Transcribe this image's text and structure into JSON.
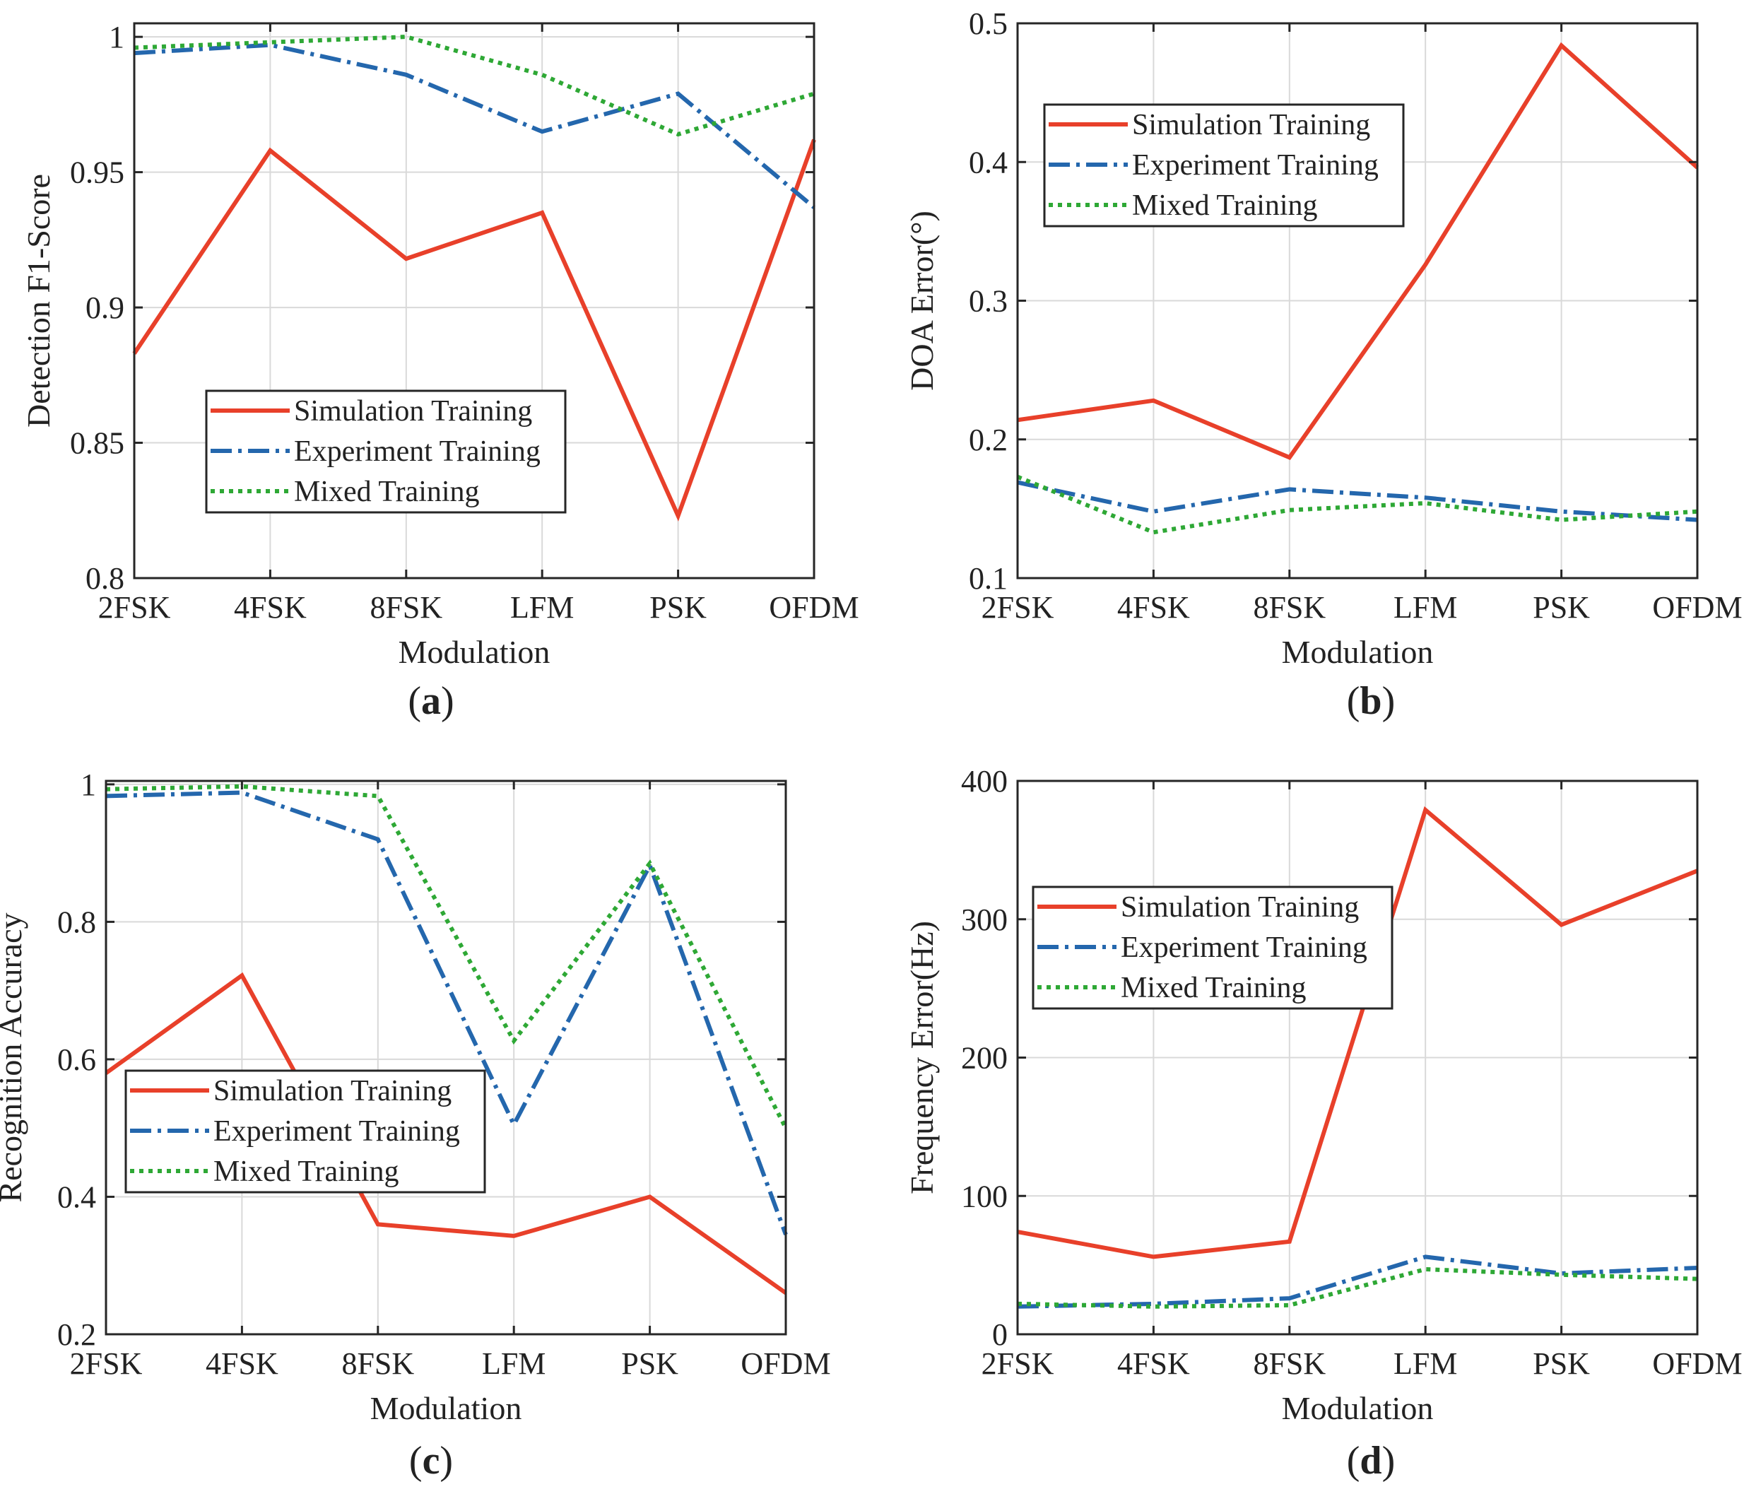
{
  "colors": {
    "simulation": "#e8402a",
    "experiment": "#2467ad",
    "mixed": "#2ea835",
    "grid": "#d9d9d9",
    "axis": "#262626"
  },
  "chart_data": [
    {
      "id": "a",
      "type": "line",
      "panel_label": "a",
      "xlabel": "Modulation",
      "ylabel": "Detection F1-Score",
      "categories": [
        "2FSK",
        "4FSK",
        "8FSK",
        "LFM",
        "PSK",
        "OFDM"
      ],
      "ylim": [
        0.8,
        1.005
      ],
      "yticks": [
        0.8,
        0.85,
        0.9,
        0.95,
        1
      ],
      "ytick_labels": [
        "0.8",
        "0.85",
        "0.9",
        "0.95",
        "1"
      ],
      "grid": true,
      "legend_position": "lower-center",
      "series": [
        {
          "name": "Simulation Training",
          "style": "solid",
          "values": [
            0.883,
            0.958,
            0.918,
            0.935,
            0.823,
            0.962
          ]
        },
        {
          "name": "Experiment Training",
          "style": "dashdot",
          "values": [
            0.994,
            0.997,
            0.986,
            0.965,
            0.979,
            0.937
          ]
        },
        {
          "name": "Mixed Training",
          "style": "dotted",
          "values": [
            0.996,
            0.998,
            1.0,
            0.986,
            0.964,
            0.979
          ]
        }
      ]
    },
    {
      "id": "b",
      "type": "line",
      "panel_label": "b",
      "xlabel": "Modulation",
      "ylabel": "DOA Error(°)",
      "categories": [
        "2FSK",
        "4FSK",
        "8FSK",
        "LFM",
        "PSK",
        "OFDM"
      ],
      "ylim": [
        0.1,
        0.5
      ],
      "yticks": [
        0.1,
        0.2,
        0.3,
        0.4,
        0.5
      ],
      "ytick_labels": [
        "0.1",
        "0.2",
        "0.3",
        "0.4",
        "0.5"
      ],
      "grid": true,
      "legend_position": "top-left",
      "series": [
        {
          "name": "Simulation Training",
          "style": "solid",
          "values": [
            0.214,
            0.228,
            0.187,
            0.326,
            0.484,
            0.396
          ]
        },
        {
          "name": "Experiment Training",
          "style": "dashdot",
          "values": [
            0.169,
            0.148,
            0.164,
            0.158,
            0.148,
            0.142
          ]
        },
        {
          "name": "Mixed Training",
          "style": "dotted",
          "values": [
            0.173,
            0.133,
            0.149,
            0.154,
            0.142,
            0.148
          ]
        }
      ]
    },
    {
      "id": "c",
      "type": "line",
      "panel_label": "c",
      "xlabel": "Modulation",
      "ylabel": "Recognition Accuracy",
      "categories": [
        "2FSK",
        "4FSK",
        "8FSK",
        "LFM",
        "PSK",
        "OFDM"
      ],
      "ylim": [
        0.2,
        1.005
      ],
      "yticks": [
        0.2,
        0.4,
        0.6,
        0.8,
        1
      ],
      "ytick_labels": [
        "0.2",
        "0.4",
        "0.6",
        "0.8",
        "1"
      ],
      "grid": true,
      "legend_position": "lower-left",
      "series": [
        {
          "name": "Simulation Training",
          "style": "solid",
          "values": [
            0.58,
            0.722,
            0.36,
            0.343,
            0.4,
            0.26
          ]
        },
        {
          "name": "Experiment Training",
          "style": "dashdot",
          "values": [
            0.983,
            0.988,
            0.92,
            0.505,
            0.882,
            0.345
          ]
        },
        {
          "name": "Mixed Training",
          "style": "dotted",
          "values": [
            0.993,
            0.997,
            0.983,
            0.627,
            0.885,
            0.5
          ]
        }
      ]
    },
    {
      "id": "d",
      "type": "line",
      "panel_label": "d",
      "xlabel": "Modulation",
      "ylabel": "Frequency Error(Hz)",
      "categories": [
        "2FSK",
        "4FSK",
        "8FSK",
        "LFM",
        "PSK",
        "OFDM"
      ],
      "ylim": [
        0,
        400
      ],
      "yticks": [
        0,
        100,
        200,
        300,
        400
      ],
      "ytick_labels": [
        "0",
        "100",
        "200",
        "300",
        "400"
      ],
      "grid": true,
      "legend_position": "top-left",
      "series": [
        {
          "name": "Simulation Training",
          "style": "solid",
          "values": [
            74,
            56,
            67,
            379,
            296,
            335
          ]
        },
        {
          "name": "Experiment Training",
          "style": "dashdot",
          "values": [
            20,
            22,
            26,
            56,
            44,
            48
          ]
        },
        {
          "name": "Mixed Training",
          "style": "dotted",
          "values": [
            22,
            20,
            21,
            47,
            43,
            40
          ]
        }
      ]
    }
  ]
}
